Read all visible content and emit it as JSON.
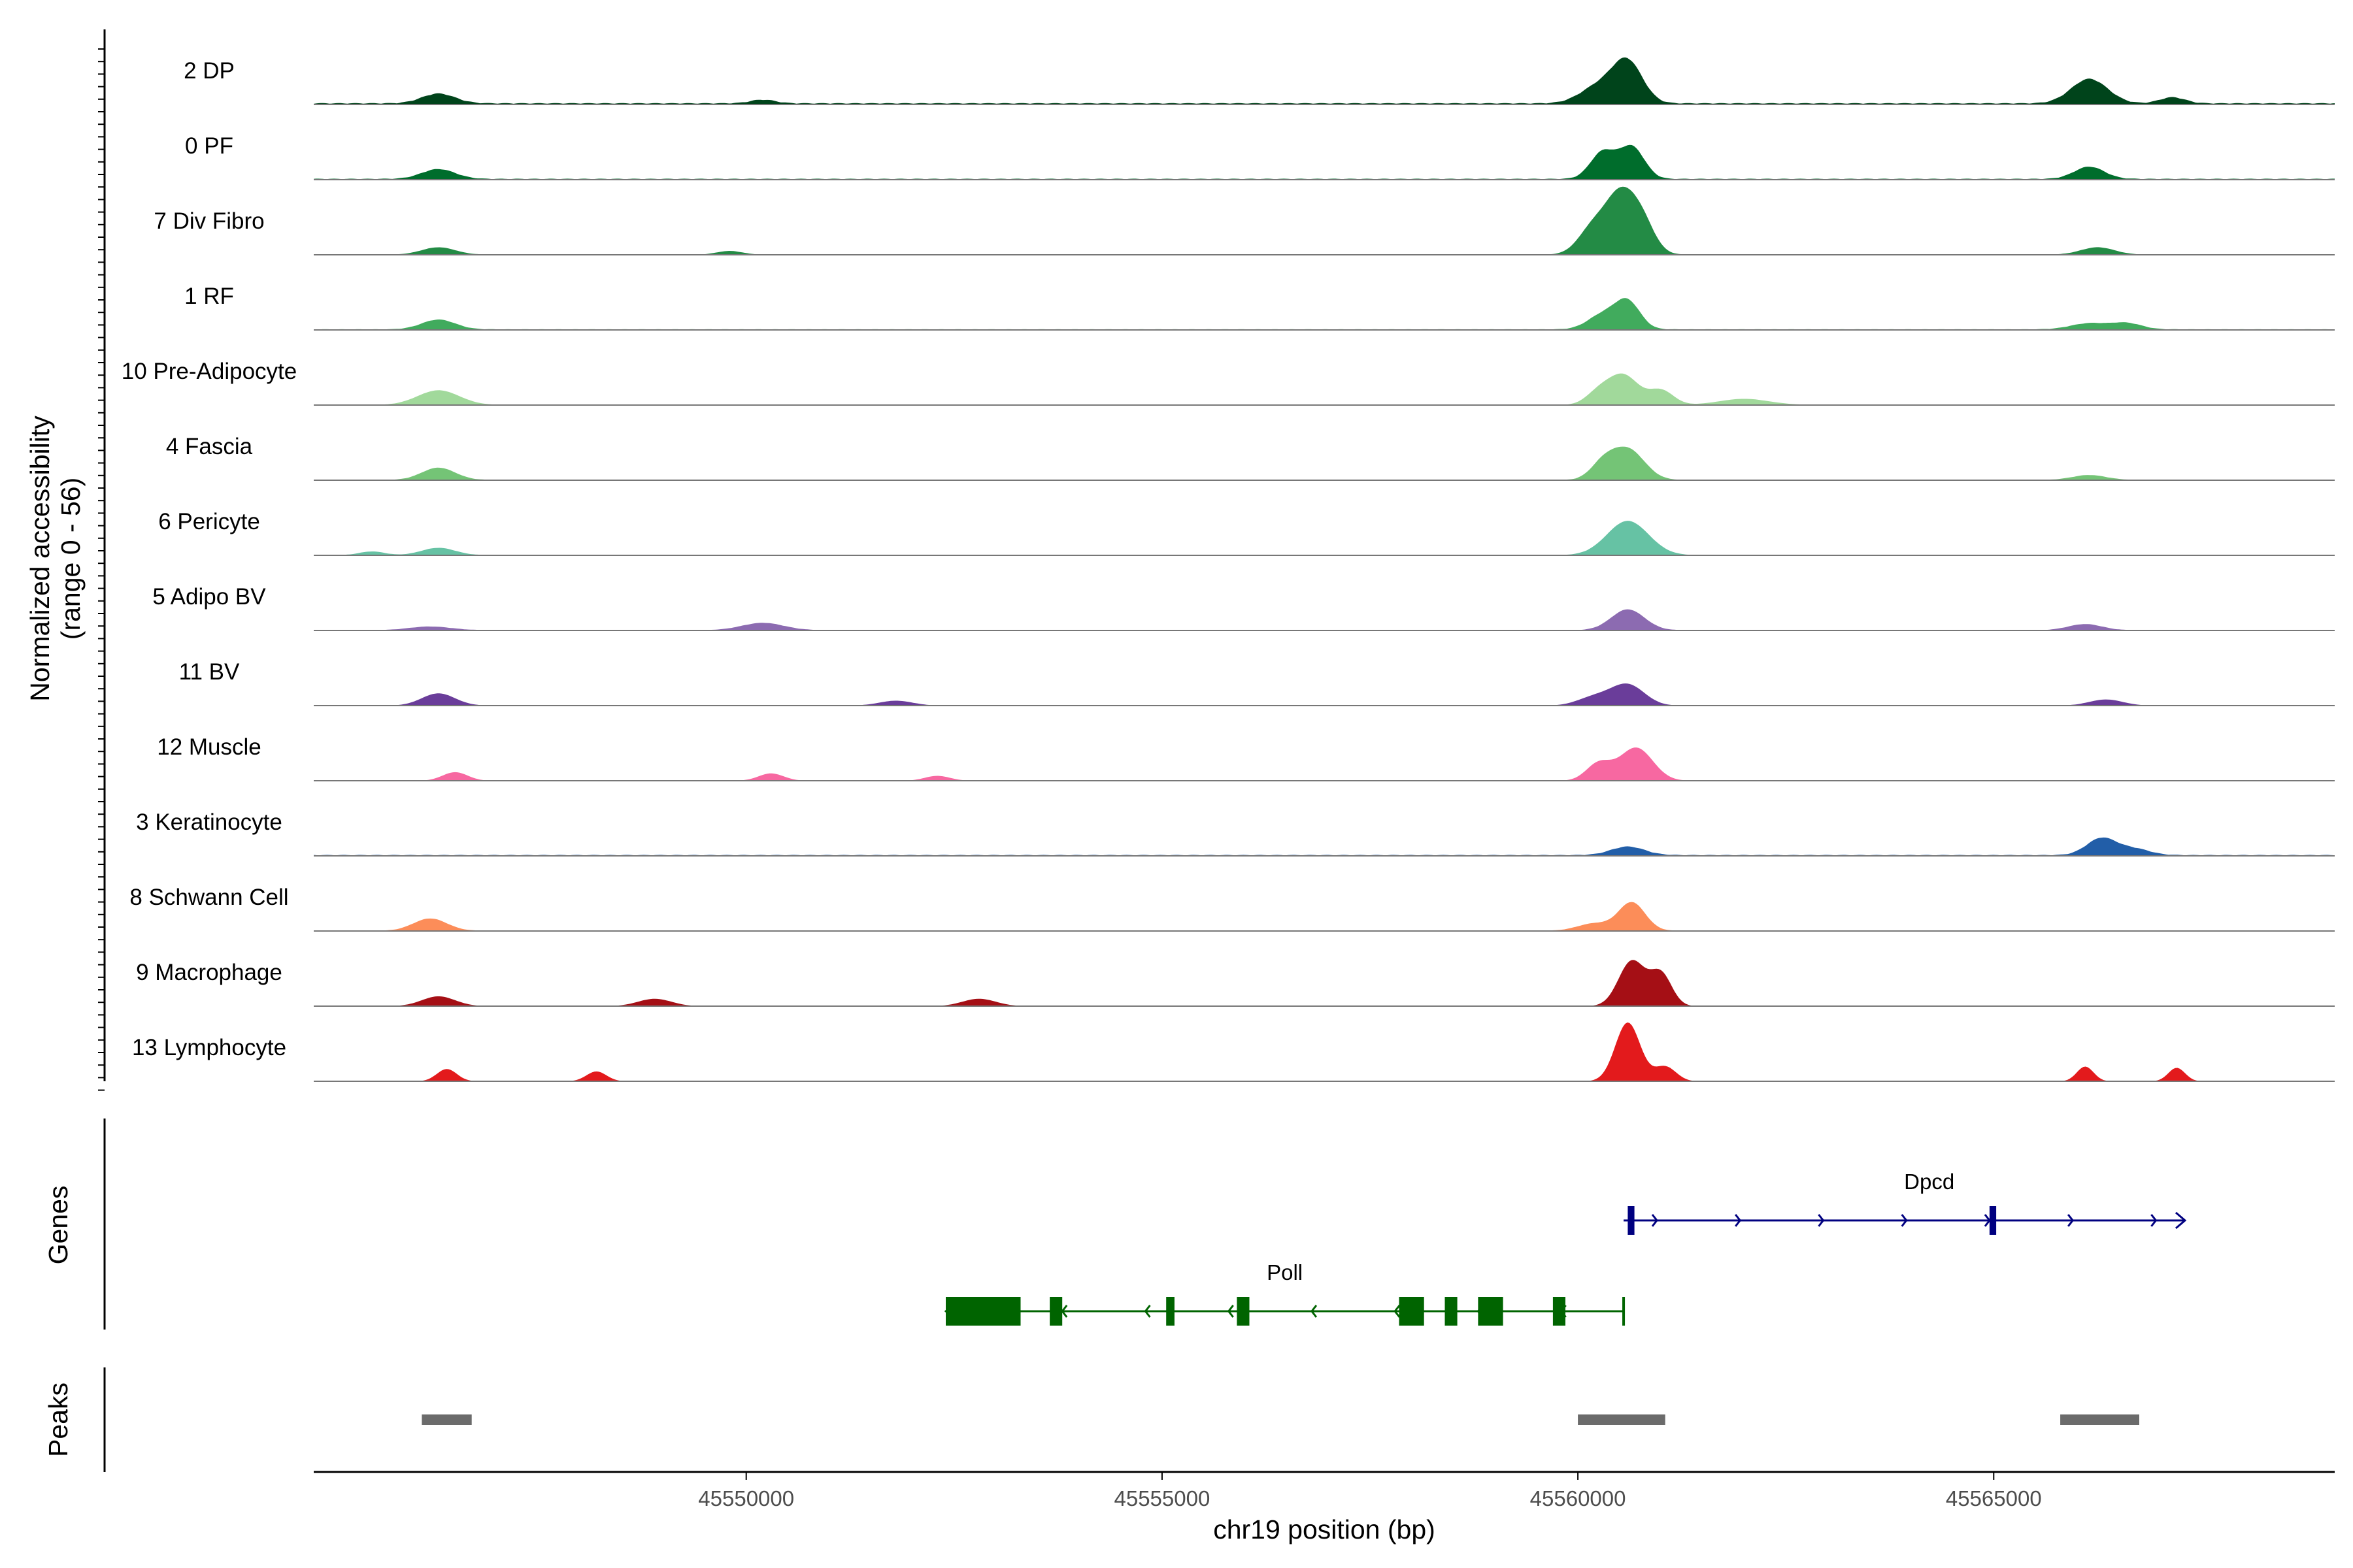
{
  "chart_data": {
    "type": "area",
    "chromosome": "chr19",
    "xlim": [
      45544800,
      45569100
    ],
    "x_ticks": [
      45550000,
      45555000,
      45560000,
      45565000
    ],
    "xlabel": "chr19 position (bp)",
    "ylabel_line1": "Normalized accessibility",
    "ylabel_line2": "(range 0 - 56)",
    "ylim": [
      0,
      56
    ],
    "genes_label": "Genes",
    "peaks_label": "Peaks",
    "series": [
      {
        "name": "2 DP",
        "color": "#00441b",
        "base": 1.2,
        "clusters": [
          [
            45546300,
            200,
            8
          ],
          [
            45550200,
            150,
            3
          ],
          [
            45560600,
            180,
            33
          ],
          [
            45560250,
            220,
            14
          ],
          [
            45566150,
            220,
            20
          ],
          [
            45567150,
            150,
            5
          ]
        ]
      },
      {
        "name": "0 PF",
        "color": "#006d2c",
        "base": 0.8,
        "clusters": [
          [
            45546300,
            200,
            8
          ],
          [
            45560300,
            150,
            22
          ],
          [
            45560650,
            150,
            26
          ],
          [
            45566150,
            180,
            10
          ]
        ]
      },
      {
        "name": "7 Div Fibro",
        "color": "#238b45",
        "base": 0.2,
        "clusters": [
          [
            45546300,
            200,
            6
          ],
          [
            45549800,
            150,
            3
          ],
          [
            45560200,
            180,
            24
          ],
          [
            45560500,
            160,
            40
          ],
          [
            45560750,
            160,
            30
          ],
          [
            45566250,
            200,
            6
          ]
        ]
      },
      {
        "name": "1 RF",
        "color": "#41ab5d",
        "base": 0.6,
        "clusters": [
          [
            45546300,
            200,
            8
          ],
          [
            45560300,
            180,
            12
          ],
          [
            45560600,
            150,
            22
          ],
          [
            45566150,
            220,
            5
          ],
          [
            45566600,
            180,
            5
          ]
        ]
      },
      {
        "name": "10 Pre-Adipocyte",
        "color": "#a1d99b",
        "base": 0.1,
        "clusters": [
          [
            45546300,
            250,
            12
          ],
          [
            45560250,
            150,
            10
          ],
          [
            45560550,
            180,
            24
          ],
          [
            45561000,
            150,
            12
          ],
          [
            45562000,
            300,
            5
          ]
        ]
      },
      {
        "name": "4 Fascia",
        "color": "#74c476",
        "base": 0.3,
        "clusters": [
          [
            45546300,
            200,
            10
          ],
          [
            45560300,
            150,
            12
          ],
          [
            45560600,
            200,
            25
          ],
          [
            45566150,
            200,
            4
          ]
        ]
      },
      {
        "name": "6 Pericyte",
        "color": "#66c2a4",
        "base": 0.2,
        "clusters": [
          [
            45546300,
            200,
            6
          ],
          [
            45545500,
            150,
            3
          ],
          [
            45560600,
            250,
            28
          ]
        ]
      },
      {
        "name": "5 Adipo BV",
        "color": "#8c6bb1",
        "base": 0.3,
        "clusters": [
          [
            45546200,
            250,
            3
          ],
          [
            45550200,
            250,
            6
          ],
          [
            45560600,
            200,
            17
          ],
          [
            45566100,
            200,
            5
          ]
        ]
      },
      {
        "name": "11 BV",
        "color": "#6a3d9a",
        "base": 0,
        "clusters": [
          [
            45546300,
            200,
            10
          ],
          [
            45551800,
            200,
            4
          ],
          [
            45560600,
            200,
            17
          ],
          [
            45560200,
            200,
            7
          ],
          [
            45566350,
            200,
            5
          ]
        ]
      },
      {
        "name": "12 Muscle",
        "color": "#f768a1",
        "base": 0,
        "clusters": [
          [
            45546500,
            150,
            7
          ],
          [
            45550300,
            150,
            6
          ],
          [
            45552300,
            150,
            4
          ],
          [
            45560250,
            150,
            14
          ],
          [
            45560700,
            200,
            27
          ]
        ]
      },
      {
        "name": "3 Keratinocyte",
        "color": "#225ea8",
        "base": 0.8,
        "clusters": [
          [
            45560600,
            200,
            7
          ],
          [
            45566300,
            180,
            14
          ],
          [
            45566700,
            180,
            5
          ]
        ]
      },
      {
        "name": "8 Schwann Cell",
        "color": "#fc8d59",
        "base": 0.3,
        "clusters": [
          [
            45546200,
            200,
            10
          ],
          [
            45560650,
            160,
            23
          ],
          [
            45560200,
            200,
            6
          ]
        ]
      },
      {
        "name": "9 Macrophage",
        "color": "#a50f15",
        "base": 0,
        "clusters": [
          [
            45546300,
            200,
            8
          ],
          [
            45548900,
            200,
            6
          ],
          [
            45552800,
            200,
            6
          ],
          [
            45560650,
            160,
            37
          ],
          [
            45561000,
            130,
            26
          ]
        ]
      },
      {
        "name": "13 Lymphocyte",
        "color": "#e31a1c",
        "base": 0,
        "clusters": [
          [
            45546400,
            120,
            10
          ],
          [
            45548200,
            120,
            8
          ],
          [
            45560600,
            150,
            48
          ],
          [
            45561050,
            130,
            12
          ],
          [
            45566100,
            100,
            12
          ],
          [
            45567200,
            100,
            11
          ]
        ]
      }
    ],
    "genes": [
      {
        "name": "Dpcd",
        "strand": "+",
        "color": "#000080",
        "start": 45560550,
        "end": 45567300,
        "exons": [
          [
            45560600,
            45560680
          ],
          [
            45564950,
            45565030
          ]
        ]
      },
      {
        "name": "Poll",
        "strand": "-",
        "color": "#006400",
        "start": 45552400,
        "end": 45560550,
        "exons": [
          [
            45552400,
            45553300
          ],
          [
            45553650,
            45553800
          ],
          [
            45555050,
            45555150
          ],
          [
            45555900,
            45556050
          ],
          [
            45557850,
            45558150
          ],
          [
            45558400,
            45558550
          ],
          [
            45558800,
            45559100
          ],
          [
            45559700,
            45559850
          ]
        ]
      }
    ],
    "peaks": [
      [
        45546100,
        45546700
      ],
      [
        45560000,
        45561050
      ],
      [
        45565800,
        45566750
      ]
    ]
  }
}
